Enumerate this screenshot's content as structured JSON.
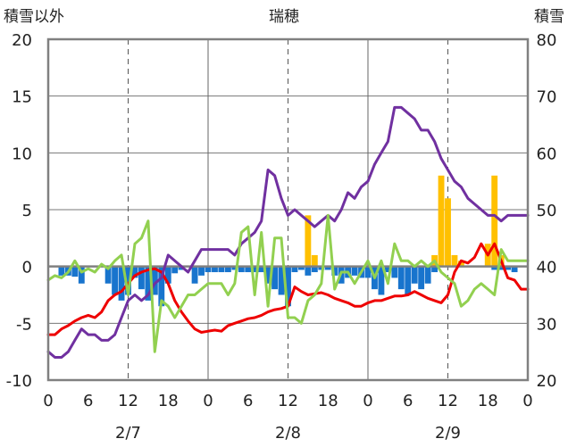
{
  "chart_data": {
    "type": "bar+line",
    "title": "瑞穂",
    "left_axis_label": "積雪以外",
    "right_axis_label": "積雪",
    "left_ylim": [
      -10,
      20
    ],
    "left_yticks": [
      "20",
      "15",
      "10",
      "5",
      "0",
      "-5",
      "-10"
    ],
    "right_ylim": [
      20,
      80
    ],
    "right_yticks": [
      "80",
      "70",
      "60",
      "50",
      "40",
      "30",
      "20"
    ],
    "x_hours_range": [
      0,
      72
    ],
    "x_tick_labels": [
      "0",
      "6",
      "12",
      "18",
      "0",
      "6",
      "12",
      "18",
      "0",
      "6",
      "12",
      "18",
      "0"
    ],
    "date_labels": [
      "2/7",
      "2/8",
      "2/9"
    ],
    "grid": true,
    "colors": {
      "temp_diff_bars_negative": "#1874CD",
      "snowfall_bars": "#FFC000",
      "temperature_line": "#EE0000",
      "snow_depth_line": "#7030A0",
      "green_line": "#92D050",
      "axis_frame": "#808080",
      "grid_dashed": "#555555"
    },
    "series": [
      {
        "axis": "left",
        "style": "bar",
        "color": "#1874CD",
        "hours": [
          2,
          3,
          4,
          5,
          9,
          10,
          11,
          12,
          13,
          14,
          15,
          16,
          17,
          18,
          19,
          20,
          22,
          23,
          24,
          25,
          26,
          27,
          28,
          29,
          30,
          31,
          32,
          33,
          34,
          35,
          36,
          37,
          38,
          39,
          40,
          41,
          42,
          43,
          44,
          45,
          46,
          47,
          48,
          49,
          50,
          51,
          52,
          53,
          54,
          55,
          56,
          57,
          58,
          67,
          68,
          69,
          70
        ],
        "values": [
          -0.8,
          -0.8,
          -0.9,
          -1.5,
          -1.5,
          -2.5,
          -3.0,
          -2.5,
          -1.0,
          -2.0,
          -3.0,
          -2.5,
          -3.5,
          -1.5,
          -0.6,
          -0.3,
          -1.5,
          -0.8,
          -0.5,
          -0.5,
          -0.5,
          -0.5,
          -0.3,
          -0.5,
          -0.5,
          -0.5,
          -0.5,
          -1.5,
          -2.0,
          -2.5,
          -3.5,
          -0.5,
          -0.3,
          -0.8,
          -0.5,
          -0.3,
          -0.3,
          -0.8,
          -1.5,
          -1.0,
          -0.8,
          -1.0,
          -1.0,
          -2.0,
          -2.5,
          -0.5,
          -1.0,
          -2.0,
          -2.5,
          -1.5,
          -2.0,
          -1.5,
          -0.5,
          -0.3,
          -0.3,
          -0.3,
          -0.5
        ]
      },
      {
        "axis": "left",
        "style": "bar",
        "color": "#FFC000",
        "hours": [
          39,
          40,
          58,
          59,
          60,
          61,
          62,
          66,
          67,
          68
        ],
        "values": [
          4.5,
          1.0,
          1.0,
          8.0,
          6.0,
          1.0,
          0.5,
          2.0,
          8.0,
          1.0
        ]
      },
      {
        "axis": "left",
        "style": "line",
        "color": "#EE0000",
        "hours": [
          0,
          1,
          2,
          3,
          4,
          5,
          6,
          7,
          8,
          9,
          10,
          11,
          12,
          13,
          14,
          15,
          16,
          17,
          18,
          19,
          20,
          21,
          22,
          23,
          24,
          25,
          26,
          27,
          28,
          29,
          30,
          31,
          32,
          33,
          34,
          35,
          36,
          37,
          38,
          39,
          40,
          41,
          42,
          43,
          44,
          45,
          46,
          47,
          48,
          49,
          50,
          51,
          52,
          53,
          54,
          55,
          56,
          57,
          58,
          59,
          60,
          61,
          62,
          63,
          64,
          65,
          66,
          67,
          68,
          69,
          70,
          71,
          72
        ],
        "values": [
          -6.0,
          -6.0,
          -5.5,
          -5.2,
          -4.8,
          -4.5,
          -4.3,
          -4.5,
          -4.0,
          -3.0,
          -2.5,
          -2.2,
          -1.5,
          -0.8,
          -0.5,
          -0.3,
          -0.2,
          -0.5,
          -1.5,
          -3.0,
          -4.0,
          -4.8,
          -5.5,
          -5.8,
          -5.7,
          -5.6,
          -5.7,
          -5.2,
          -5.0,
          -4.8,
          -4.6,
          -4.5,
          -4.3,
          -4.0,
          -3.8,
          -3.7,
          -3.5,
          -1.8,
          -2.2,
          -2.5,
          -2.4,
          -2.3,
          -2.5,
          -2.8,
          -3.0,
          -3.2,
          -3.5,
          -3.5,
          -3.2,
          -3.0,
          -3.0,
          -2.8,
          -2.6,
          -2.6,
          -2.5,
          -2.2,
          -2.5,
          -2.8,
          -3.0,
          -3.2,
          -2.5,
          -0.5,
          0.5,
          0.3,
          0.8,
          2.0,
          1.0,
          2.0,
          0.5,
          -1.0,
          -1.2,
          -2.0,
          -2.0
        ]
      },
      {
        "axis": "right",
        "style": "line",
        "color": "#7030A0",
        "hours": [
          0,
          1,
          2,
          3,
          4,
          5,
          6,
          7,
          8,
          9,
          10,
          11,
          12,
          13,
          14,
          15,
          16,
          17,
          18,
          19,
          20,
          21,
          22,
          23,
          24,
          25,
          26,
          27,
          28,
          29,
          30,
          31,
          32,
          33,
          34,
          35,
          36,
          37,
          38,
          39,
          40,
          41,
          42,
          43,
          44,
          45,
          46,
          47,
          48,
          49,
          50,
          51,
          52,
          53,
          54,
          55,
          56,
          57,
          58,
          59,
          60,
          61,
          62,
          63,
          64,
          65,
          66,
          67,
          68,
          69,
          70,
          71,
          72
        ],
        "values": [
          25.0,
          24.0,
          24.0,
          25.0,
          27.0,
          29.0,
          28.0,
          28.0,
          27.0,
          27.0,
          28.0,
          31.0,
          34.0,
          35.0,
          34.0,
          35.0,
          37.0,
          38.0,
          42.0,
          41.0,
          40.0,
          39.0,
          41.0,
          43.0,
          43.0,
          43.0,
          43.0,
          43.0,
          42.0,
          44.0,
          45.0,
          46.0,
          48.0,
          57.0,
          56.0,
          52.0,
          49.0,
          50.0,
          49.0,
          48.0,
          47.0,
          48.0,
          49.0,
          48.0,
          50.0,
          53.0,
          52.0,
          54.0,
          55.0,
          58.0,
          60.0,
          62.0,
          68.0,
          68.0,
          67.0,
          66.0,
          64.0,
          64.0,
          62.0,
          59.0,
          57.0,
          55.0,
          54.0,
          52.0,
          51.0,
          50.0,
          49.0,
          49.0,
          48.0,
          49.0,
          49.0,
          49.0,
          49.0
        ]
      },
      {
        "axis": "left",
        "style": "line",
        "color": "#92D050",
        "hours": [
          0,
          1,
          2,
          3,
          4,
          5,
          6,
          7,
          8,
          9,
          10,
          11,
          12,
          13,
          14,
          15,
          16,
          17,
          18,
          19,
          20,
          21,
          22,
          23,
          24,
          25,
          26,
          27,
          28,
          29,
          30,
          31,
          32,
          33,
          34,
          35,
          36,
          37,
          38,
          39,
          40,
          41,
          42,
          43,
          44,
          45,
          46,
          47,
          48,
          49,
          50,
          51,
          52,
          53,
          54,
          55,
          56,
          57,
          58,
          59,
          60,
          61,
          62,
          63,
          64,
          65,
          66,
          67,
          68,
          69,
          70,
          71,
          72
        ],
        "values": [
          -1.2,
          -0.8,
          -1.0,
          -0.5,
          0.5,
          -0.5,
          -0.2,
          -0.5,
          0.2,
          -0.2,
          0.5,
          1.0,
          -2.5,
          2.0,
          2.5,
          4.0,
          -7.5,
          -3.0,
          -3.5,
          -4.5,
          -3.5,
          -2.5,
          -2.5,
          -2.0,
          -1.5,
          -1.5,
          -1.5,
          -2.5,
          -1.5,
          3.0,
          3.5,
          -2.5,
          3.0,
          -3.5,
          2.5,
          2.5,
          -4.5,
          -4.5,
          -5.0,
          -3.0,
          -2.5,
          -1.5,
          4.5,
          -2.0,
          -0.5,
          -0.5,
          -1.5,
          -0.5,
          0.5,
          -1.0,
          0.5,
          -1.5,
          2.0,
          0.5,
          0.5,
          0.0,
          0.5,
          0.0,
          0.5,
          -0.5,
          -1.0,
          -1.5,
          -3.5,
          -3.0,
          -2.0,
          -1.5,
          -2.0,
          -2.5,
          1.5,
          0.5,
          0.5,
          0.5,
          0.5
        ]
      }
    ]
  }
}
